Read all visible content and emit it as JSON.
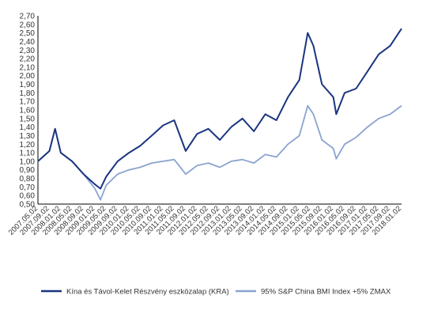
{
  "chart_data": {
    "type": "line",
    "title": "",
    "xlabel": "",
    "ylabel": "",
    "ylim": [
      0.5,
      2.7
    ],
    "y_ticks": [
      "0,50",
      "0,60",
      "0,70",
      "0,80",
      "0,90",
      "1,00",
      "1,10",
      "1,20",
      "1,30",
      "1,40",
      "1,50",
      "1,60",
      "1,70",
      "1,80",
      "1,90",
      "2,00",
      "2,10",
      "2,20",
      "2,30",
      "2,40",
      "2,50",
      "2,60",
      "2,70"
    ],
    "x_ticks": [
      "2007.05.02",
      "2007.09.02",
      "2008.01.02",
      "2008.05.02",
      "2008.09.02",
      "2009.01.02",
      "2009.05.02",
      "2009.09.02",
      "2010.01.02",
      "2010.05.02",
      "2010.09.02",
      "2011.01.02",
      "2011.05.02",
      "2011.09.02",
      "2012.01.02",
      "2012.05.02",
      "2012.09.02",
      "2013.01.02",
      "2013.05.02",
      "2013.09.02",
      "2014.01.02",
      "2014.05.02",
      "2014.09.02",
      "2015.01.02",
      "2015.05.02",
      "2015.09.02",
      "2016.01.02",
      "2016.05.02",
      "2016.09.02",
      "2017.01.02",
      "2017.05.02",
      "2017.09.02",
      "2018.01.02"
    ],
    "grid": false,
    "legend_position": "bottom",
    "series": [
      {
        "name": "Kína és Távol-Kelet Részvény eszközalap (KRA)",
        "color": "#1a3580",
        "x": [
          "2007.05.02",
          "2007.09.02",
          "2007.11.02",
          "2008.01.02",
          "2008.05.02",
          "2008.09.02",
          "2009.01.02",
          "2009.03.02",
          "2009.05.02",
          "2009.09.02",
          "2010.01.02",
          "2010.05.02",
          "2010.09.02",
          "2011.01.02",
          "2011.05.02",
          "2011.09.02",
          "2012.01.02",
          "2012.05.02",
          "2012.09.02",
          "2013.01.02",
          "2013.05.02",
          "2013.09.02",
          "2014.01.02",
          "2014.05.02",
          "2014.09.02",
          "2015.01.02",
          "2015.04.02",
          "2015.06.02",
          "2015.09.02",
          "2016.01.02",
          "2016.02.02",
          "2016.05.02",
          "2016.09.02",
          "2017.01.02",
          "2017.05.02",
          "2017.09.02",
          "2018.01.02"
        ],
        "values": [
          1.0,
          1.12,
          1.38,
          1.1,
          1.0,
          0.85,
          0.73,
          0.68,
          0.82,
          1.0,
          1.1,
          1.18,
          1.3,
          1.42,
          1.48,
          1.12,
          1.32,
          1.38,
          1.25,
          1.4,
          1.5,
          1.35,
          1.55,
          1.48,
          1.75,
          1.95,
          2.5,
          2.35,
          1.9,
          1.75,
          1.55,
          1.8,
          1.85,
          2.05,
          2.25,
          2.35,
          2.55
        ]
      },
      {
        "name": "95% S&P China BMI Index +5% ZMAX",
        "color": "#8aa3d0",
        "x": [
          "2007.05.02",
          "2007.09.02",
          "2007.11.02",
          "2008.01.02",
          "2008.05.02",
          "2008.09.02",
          "2009.01.02",
          "2009.03.02",
          "2009.05.02",
          "2009.09.02",
          "2010.01.02",
          "2010.05.02",
          "2010.09.02",
          "2011.01.02",
          "2011.05.02",
          "2011.09.02",
          "2012.01.02",
          "2012.05.02",
          "2012.09.02",
          "2013.01.02",
          "2013.05.02",
          "2013.09.02",
          "2014.01.02",
          "2014.05.02",
          "2014.09.02",
          "2015.01.02",
          "2015.04.02",
          "2015.06.02",
          "2015.09.02",
          "2016.01.02",
          "2016.02.02",
          "2016.05.02",
          "2016.09.02",
          "2017.01.02",
          "2017.05.02",
          "2017.09.02",
          "2018.01.02"
        ],
        "values": [
          1.0,
          1.12,
          1.38,
          1.1,
          1.0,
          0.85,
          0.68,
          0.55,
          0.72,
          0.85,
          0.9,
          0.93,
          0.98,
          1.0,
          1.02,
          0.85,
          0.95,
          0.98,
          0.93,
          1.0,
          1.02,
          0.98,
          1.08,
          1.05,
          1.2,
          1.3,
          1.65,
          1.55,
          1.25,
          1.15,
          1.03,
          1.2,
          1.28,
          1.4,
          1.5,
          1.55,
          1.65
        ]
      }
    ]
  }
}
